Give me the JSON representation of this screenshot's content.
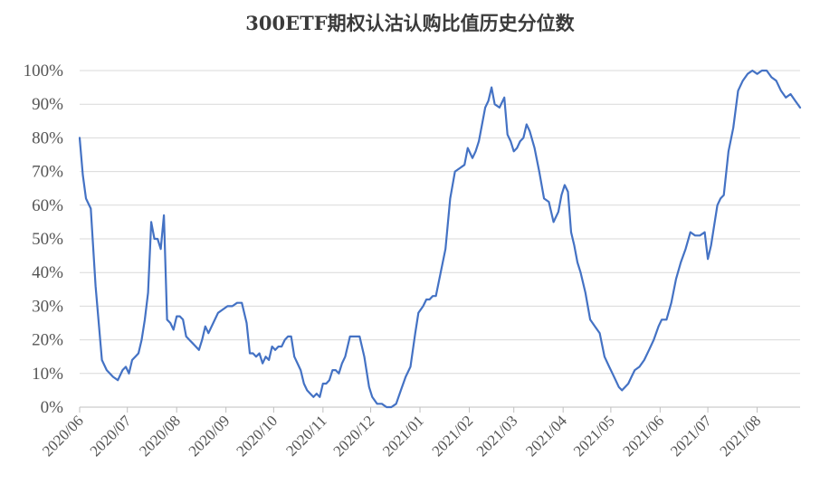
{
  "chart_data": {
    "type": "line",
    "title": "300ETF期权认沽认购比值历史分位数",
    "xlabel": "",
    "ylabel": "",
    "ylim": [
      0,
      100
    ],
    "grid": true,
    "legend": "none",
    "yticks": [
      "0%",
      "10%",
      "20%",
      "30%",
      "40%",
      "50%",
      "60%",
      "70%",
      "80%",
      "90%",
      "100%"
    ],
    "xticks": [
      "2020/06",
      "2020/07",
      "2020/08",
      "2020/09",
      "2020/10",
      "2020/11",
      "2020/12",
      "2021/01",
      "2021/02",
      "2021/03",
      "2021/04",
      "2021/05",
      "2021/06",
      "2021/07",
      "2021/08"
    ],
    "series": [
      {
        "color": "#4472C4",
        "x": [
          "2020-06-01",
          "2020-06-03",
          "2020-06-05",
          "2020-06-08",
          "2020-06-11",
          "2020-06-15",
          "2020-06-18",
          "2020-06-22",
          "2020-06-25",
          "2020-06-28",
          "2020-06-30",
          "2020-07-02",
          "2020-07-04",
          "2020-07-06",
          "2020-07-08",
          "2020-07-10",
          "2020-07-12",
          "2020-07-14",
          "2020-07-16",
          "2020-07-18",
          "2020-07-20",
          "2020-07-22",
          "2020-07-24",
          "2020-07-26",
          "2020-07-28",
          "2020-07-30",
          "2020-08-01",
          "2020-08-03",
          "2020-08-05",
          "2020-08-07",
          "2020-08-09",
          "2020-08-11",
          "2020-08-13",
          "2020-08-15",
          "2020-08-17",
          "2020-08-19",
          "2020-08-21",
          "2020-08-24",
          "2020-08-27",
          "2020-08-30",
          "2020-09-02",
          "2020-09-05",
          "2020-09-08",
          "2020-09-11",
          "2020-09-14",
          "2020-09-16",
          "2020-09-18",
          "2020-09-20",
          "2020-09-22",
          "2020-09-24",
          "2020-09-26",
          "2020-09-28",
          "2020-09-30",
          "2020-10-02",
          "2020-10-04",
          "2020-10-06",
          "2020-10-08",
          "2020-10-10",
          "2020-10-12",
          "2020-10-14",
          "2020-10-16",
          "2020-10-18",
          "2020-10-20",
          "2020-10-22",
          "2020-10-24",
          "2020-10-26",
          "2020-10-28",
          "2020-10-30",
          "2020-11-01",
          "2020-11-03",
          "2020-11-05",
          "2020-11-07",
          "2020-11-09",
          "2020-11-11",
          "2020-11-13",
          "2020-11-15",
          "2020-11-18",
          "2020-11-21",
          "2020-11-24",
          "2020-11-27",
          "2020-11-30",
          "2020-12-02",
          "2020-12-05",
          "2020-12-08",
          "2020-12-11",
          "2020-12-14",
          "2020-12-17",
          "2020-12-20",
          "2020-12-23",
          "2020-12-26",
          "2020-12-29",
          "2020-12-31",
          "2021-01-03",
          "2021-01-05",
          "2021-01-07",
          "2021-01-09",
          "2021-01-11",
          "2021-01-14",
          "2021-01-17",
          "2021-01-20",
          "2021-01-23",
          "2021-01-26",
          "2021-01-29",
          "2021-01-31",
          "2021-02-03",
          "2021-02-05",
          "2021-02-07",
          "2021-02-09",
          "2021-02-11",
          "2021-02-13",
          "2021-02-15",
          "2021-02-17",
          "2021-02-20",
          "2021-02-23",
          "2021-02-25",
          "2021-02-27",
          "2021-03-01",
          "2021-03-03",
          "2021-03-05",
          "2021-03-07",
          "2021-03-09",
          "2021-03-11",
          "2021-03-14",
          "2021-03-17",
          "2021-03-20",
          "2021-03-23",
          "2021-03-26",
          "2021-03-29",
          "2021-03-31",
          "2021-04-02",
          "2021-04-04",
          "2021-04-06",
          "2021-04-08",
          "2021-04-10",
          "2021-04-12",
          "2021-04-15",
          "2021-04-18",
          "2021-04-21",
          "2021-04-24",
          "2021-04-27",
          "2021-04-30",
          "2021-05-02",
          "2021-05-04",
          "2021-05-06",
          "2021-05-08",
          "2021-05-10",
          "2021-05-12",
          "2021-05-14",
          "2021-05-16",
          "2021-05-19",
          "2021-05-22",
          "2021-05-25",
          "2021-05-28",
          "2021-05-31",
          "2021-06-02",
          "2021-06-05",
          "2021-06-08",
          "2021-06-11",
          "2021-06-14",
          "2021-06-17",
          "2021-06-20",
          "2021-06-23",
          "2021-06-26",
          "2021-06-29",
          "2021-07-01",
          "2021-07-03",
          "2021-07-05",
          "2021-07-07",
          "2021-07-09",
          "2021-07-11",
          "2021-07-14",
          "2021-07-17",
          "2021-07-20",
          "2021-07-23",
          "2021-07-26",
          "2021-07-29",
          "2021-08-01",
          "2021-08-04",
          "2021-08-07",
          "2021-08-10",
          "2021-08-13",
          "2021-08-16",
          "2021-08-19",
          "2021-08-22",
          "2021-08-25",
          "2021-08-28"
        ],
        "values": [
          80,
          69,
          62,
          59,
          36,
          14,
          11,
          9,
          8,
          11,
          12,
          10,
          14,
          15,
          16,
          20,
          26,
          34,
          55,
          50,
          50,
          47,
          57,
          26,
          25,
          23,
          27,
          27,
          26,
          21,
          20,
          19,
          18,
          17,
          20,
          24,
          22,
          25,
          28,
          29,
          30,
          30,
          31,
          31,
          25,
          16,
          16,
          15,
          16,
          13,
          15,
          14,
          18,
          17,
          18,
          18,
          20,
          21,
          21,
          15,
          13,
          11,
          7,
          5,
          4,
          3,
          4,
          3,
          7,
          7,
          8,
          11,
          11,
          10,
          13,
          15,
          21,
          21,
          21,
          15,
          6,
          3,
          1,
          1,
          0,
          0,
          1,
          5,
          9,
          12,
          22,
          28,
          30,
          32,
          32,
          33,
          33,
          40,
          47,
          62,
          70,
          71,
          72,
          77,
          74,
          76,
          79,
          84,
          89,
          91,
          95,
          90,
          89,
          92,
          81,
          79,
          76,
          77,
          79,
          80,
          84,
          82,
          77,
          70,
          62,
          61,
          55,
          58,
          63,
          66,
          64,
          52,
          48,
          43,
          40,
          34,
          26,
          24,
          22,
          15,
          12,
          10,
          8,
          6,
          5,
          6,
          7,
          9,
          11,
          12,
          14,
          17,
          20,
          24,
          26,
          26,
          31,
          38,
          43,
          47,
          52,
          51,
          51,
          52,
          44,
          48,
          54,
          60,
          62,
          63,
          76,
          83,
          94,
          97,
          99,
          100,
          99,
          100,
          100,
          98,
          97,
          94,
          92,
          93,
          91,
          89
        ]
      }
    ]
  }
}
